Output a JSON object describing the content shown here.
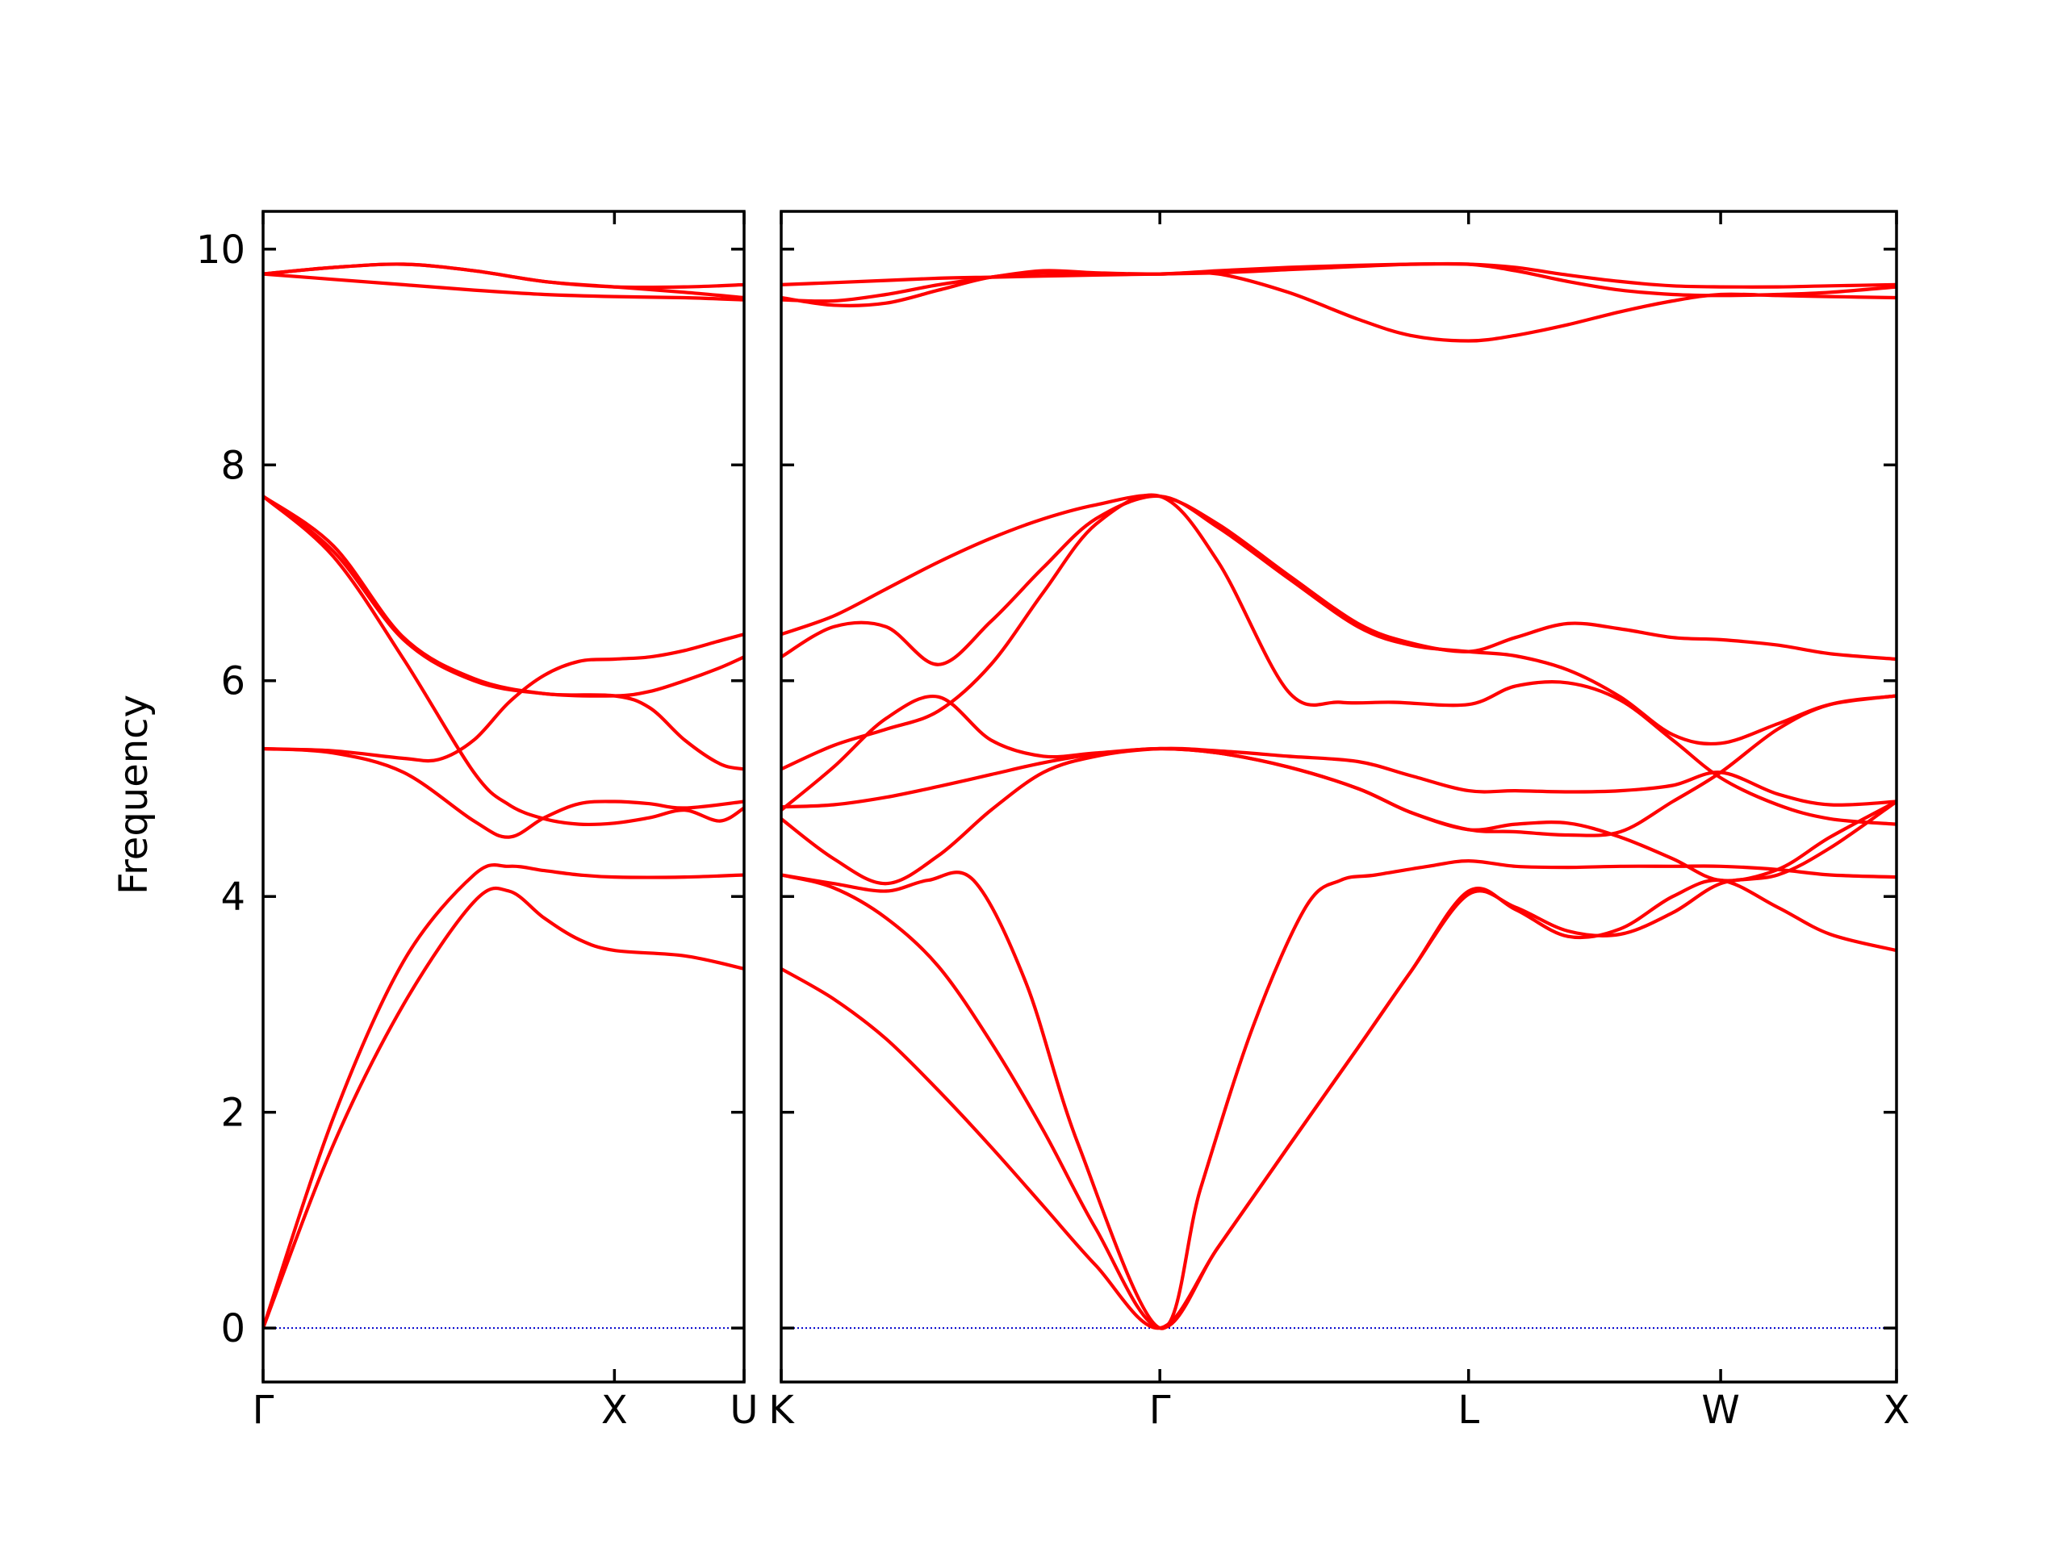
{
  "chart_data": {
    "type": "line",
    "ylabel": "Frequency",
    "ylim": [
      -0.5,
      10.35
    ],
    "yticks": [
      0,
      2,
      4,
      6,
      8,
      10
    ],
    "line_color": "#ff0000",
    "zero_line_color": "#0000cc",
    "grid": false,
    "legend": "none",
    "segments": [
      {
        "name": "Γ-X-U",
        "xlim": [
          0,
          1.369
        ],
        "ticks": [
          {
            "x": 0,
            "label": "Γ"
          },
          {
            "x": 1.0,
            "label": "X"
          },
          {
            "x": 1.369,
            "label": "U"
          }
        ],
        "bands": [
          {
            "x": [
              0,
              0.2,
              0.4,
              0.6,
              0.7,
              0.8,
              0.9,
              1.0,
              1.2,
              1.369
            ],
            "y": [
              0,
              1.7,
              3.0,
              3.95,
              4.05,
              3.8,
              3.6,
              3.5,
              3.45,
              3.33
            ]
          },
          {
            "x": [
              0,
              0.2,
              0.4,
              0.6,
              0.7,
              0.8,
              0.9,
              1.0,
              1.2,
              1.369
            ],
            "y": [
              0,
              1.95,
              3.4,
              4.2,
              4.28,
              4.24,
              4.2,
              4.18,
              4.18,
              4.2
            ]
          },
          {
            "x": [
              0,
              0.2,
              0.4,
              0.6,
              0.7,
              0.8,
              0.9,
              1.0,
              1.1,
              1.2,
              1.369
            ],
            "y": [
              5.37,
              5.33,
              5.15,
              4.7,
              4.55,
              4.73,
              4.86,
              4.88,
              4.86,
              4.82,
              4.88
            ]
          },
          {
            "x": [
              0,
              0.2,
              0.4,
              0.5,
              0.6,
              0.7,
              0.8,
              0.9,
              1.0,
              1.1,
              1.2,
              1.3,
              1.369
            ],
            "y": [
              5.37,
              5.35,
              5.28,
              5.27,
              5.45,
              5.8,
              6.05,
              6.18,
              6.2,
              6.22,
              6.28,
              6.37,
              6.43
            ]
          },
          {
            "x": [
              0,
              0.2,
              0.4,
              0.6,
              0.7,
              0.8,
              0.9,
              1.0,
              1.1,
              1.2,
              1.3,
              1.369
            ],
            "y": [
              7.71,
              7.15,
              6.2,
              5.15,
              4.85,
              4.72,
              4.67,
              4.68,
              4.73,
              4.8,
              4.7,
              4.82
            ]
          },
          {
            "x": [
              0,
              0.2,
              0.4,
              0.6,
              0.8,
              1.0,
              1.1,
              1.2,
              1.3,
              1.369
            ],
            "y": [
              7.71,
              7.25,
              6.4,
              6.02,
              5.88,
              5.86,
              5.75,
              5.45,
              5.23,
              5.18
            ]
          },
          {
            "x": [
              0,
              0.2,
              0.4,
              0.6,
              0.8,
              1.0,
              1.1,
              1.2,
              1.3,
              1.369
            ],
            "y": [
              7.71,
              7.2,
              6.38,
              6.0,
              5.88,
              5.86,
              5.9,
              6.0,
              6.12,
              6.22
            ]
          },
          {
            "x": [
              0,
              0.2,
              0.4,
              0.6,
              0.8,
              1.0,
              1.2,
              1.369
            ],
            "y": [
              9.77,
              9.72,
              9.67,
              9.62,
              9.58,
              9.56,
              9.55,
              9.53
            ]
          },
          {
            "x": [
              0,
              0.2,
              0.4,
              0.6,
              0.8,
              1.0,
              1.2,
              1.369
            ],
            "y": [
              9.77,
              9.83,
              9.86,
              9.8,
              9.7,
              9.65,
              9.65,
              9.67
            ]
          },
          {
            "x": [
              0,
              0.2,
              0.4,
              0.6,
              0.8,
              1.0,
              1.2,
              1.369
            ],
            "y": [
              9.77,
              9.83,
              9.86,
              9.8,
              9.7,
              9.65,
              9.6,
              9.55
            ]
          }
        ]
      },
      {
        "name": "K-Γ-L-W-X",
        "xlim": [
          0,
          3.19
        ],
        "ticks": [
          {
            "x": 0,
            "label": "K"
          },
          {
            "x": 1.083,
            "label": "Γ"
          },
          {
            "x": 1.966,
            "label": "L"
          },
          {
            "x": 2.687,
            "label": "W"
          },
          {
            "x": 3.19,
            "label": "X"
          }
        ],
        "bands": [
          {
            "x": [
              0,
              0.15,
              0.3,
              0.45,
              0.6,
              0.75,
              0.9,
              1.083,
              1.25,
              1.45,
              1.65,
              1.8,
              1.966,
              2.1,
              2.25,
              2.4,
              2.55,
              2.687,
              2.85,
              3.0,
              3.19
            ],
            "y": [
              3.33,
              3.05,
              2.68,
              2.2,
              1.68,
              1.13,
              0.58,
              0,
              0.75,
              1.68,
              2.6,
              3.3,
              4.02,
              3.9,
              3.68,
              3.65,
              3.85,
              4.12,
              4.2,
              4.45,
              4.88
            ]
          },
          {
            "x": [
              0,
              0.15,
              0.3,
              0.45,
              0.6,
              0.75,
              0.9,
              1.083,
              1.25,
              1.45,
              1.65,
              1.8,
              1.966,
              2.1,
              2.25,
              2.4,
              2.55,
              2.687,
              2.85,
              3.0,
              3.19
            ],
            "y": [
              4.2,
              4.08,
              3.8,
              3.35,
              2.65,
              1.83,
              0.92,
              0,
              0.75,
              1.68,
              2.6,
              3.3,
              4.05,
              3.88,
              3.63,
              3.7,
              4.0,
              4.15,
              3.9,
              3.65,
              3.5
            ]
          },
          {
            "x": [
              0,
              0.15,
              0.3,
              0.42,
              0.55,
              0.7,
              0.85,
              1.083,
              1.2,
              1.35,
              1.5,
              1.6,
              1.7,
              1.85,
              1.966,
              2.1,
              2.25,
              2.4,
              2.55,
              2.687,
              2.85,
              3.0,
              3.19
            ],
            "y": [
              4.2,
              4.12,
              4.05,
              4.15,
              4.15,
              3.2,
              1.7,
              0,
              1.3,
              2.8,
              3.9,
              4.15,
              4.2,
              4.28,
              4.33,
              4.28,
              4.27,
              4.28,
              4.28,
              4.28,
              4.25,
              4.2,
              4.18
            ]
          },
          {
            "x": [
              0,
              0.15,
              0.3,
              0.45,
              0.6,
              0.75,
              0.9,
              1.083,
              1.25,
              1.45,
              1.65,
              1.8,
              1.966,
              2.1,
              2.25,
              2.4,
              2.55,
              2.687,
              2.85,
              3.0,
              3.19
            ],
            "y": [
              4.72,
              4.35,
              4.12,
              4.38,
              4.8,
              5.15,
              5.3,
              5.37,
              5.35,
              5.3,
              5.25,
              5.12,
              4.98,
              4.98,
              4.97,
              4.98,
              5.03,
              5.15,
              4.95,
              4.85,
              4.88
            ]
          },
          {
            "x": [
              0,
              0.15,
              0.3,
              0.45,
              0.6,
              0.75,
              0.9,
              1.083,
              1.25,
              1.45,
              1.65,
              1.8,
              1.966,
              2.1,
              2.25,
              2.4,
              2.55,
              2.687,
              2.85,
              3.0,
              3.19
            ],
            "y": [
              4.83,
              4.85,
              4.92,
              5.02,
              5.13,
              5.24,
              5.32,
              5.37,
              5.33,
              5.2,
              5.0,
              4.78,
              4.62,
              4.6,
              4.57,
              4.6,
              4.88,
              5.15,
              5.55,
              5.78,
              5.86
            ]
          },
          {
            "x": [
              0,
              0.15,
              0.3,
              0.45,
              0.6,
              0.75,
              0.9,
              1.083,
              1.25,
              1.45,
              1.65,
              1.8,
              1.966,
              2.1,
              2.25,
              2.4,
              2.55,
              2.687,
              2.85,
              3.0,
              3.19
            ],
            "y": [
              4.8,
              5.2,
              5.65,
              5.85,
              5.45,
              5.3,
              5.33,
              5.37,
              5.33,
              5.2,
              5.0,
              4.78,
              4.62,
              4.67,
              4.68,
              4.55,
              4.35,
              4.15,
              4.25,
              4.55,
              4.88
            ]
          },
          {
            "x": [
              0,
              0.15,
              0.3,
              0.45,
              0.6,
              0.75,
              0.9,
              1.083,
              1.25,
              1.45,
              1.6,
              1.75,
              1.966,
              2.1,
              2.25,
              2.4,
              2.55,
              2.687,
              2.85,
              3.0,
              3.19
            ],
            "y": [
              5.18,
              5.4,
              5.55,
              5.72,
              6.15,
              6.82,
              7.45,
              7.71,
              7.1,
              5.9,
              5.8,
              5.8,
              5.78,
              5.95,
              5.98,
              5.82,
              5.45,
              5.1,
              4.85,
              4.72,
              4.67
            ]
          },
          {
            "x": [
              0,
              0.15,
              0.3,
              0.45,
              0.6,
              0.75,
              0.9,
              1.083,
              1.25,
              1.45,
              1.65,
              1.8,
              1.966,
              2.1,
              2.25,
              2.4,
              2.55,
              2.687,
              2.85,
              3.0,
              3.19
            ],
            "y": [
              6.22,
              6.5,
              6.5,
              6.15,
              6.55,
              7.05,
              7.5,
              7.71,
              7.42,
              6.95,
              6.5,
              6.33,
              6.27,
              6.23,
              6.1,
              5.85,
              5.5,
              5.42,
              5.6,
              5.78,
              5.86
            ]
          },
          {
            "x": [
              0,
              0.15,
              0.3,
              0.45,
              0.6,
              0.75,
              0.9,
              1.083,
              1.25,
              1.45,
              1.65,
              1.8,
              1.966,
              2.1,
              2.25,
              2.4,
              2.55,
              2.687,
              2.85,
              3.0,
              3.19
            ],
            "y": [
              6.43,
              6.6,
              6.85,
              7.1,
              7.32,
              7.5,
              7.63,
              7.71,
              7.45,
              6.98,
              6.53,
              6.35,
              6.27,
              6.4,
              6.53,
              6.48,
              6.4,
              6.38,
              6.33,
              6.25,
              6.2
            ]
          },
          {
            "x": [
              0,
              0.15,
              0.3,
              0.45,
              0.6,
              0.75,
              0.9,
              1.083,
              1.25,
              1.45,
              1.65,
              1.8,
              1.966,
              2.1,
              2.25,
              2.4,
              2.55,
              2.687,
              2.85,
              3.0,
              3.19
            ],
            "y": [
              9.55,
              9.48,
              9.5,
              9.62,
              9.74,
              9.78,
              9.77,
              9.77,
              9.77,
              9.6,
              9.35,
              9.2,
              9.15,
              9.2,
              9.3,
              9.42,
              9.52,
              9.58,
              9.57,
              9.56,
              9.55
            ]
          },
          {
            "x": [
              0,
              0.15,
              0.3,
              0.45,
              0.6,
              0.75,
              0.9,
              1.083,
              1.25,
              1.45,
              1.65,
              1.8,
              1.966,
              2.1,
              2.25,
              2.4,
              2.55,
              2.687,
              2.85,
              3.0,
              3.19
            ],
            "y": [
              9.53,
              9.52,
              9.58,
              9.67,
              9.74,
              9.8,
              9.78,
              9.77,
              9.8,
              9.83,
              9.85,
              9.86,
              9.86,
              9.8,
              9.7,
              9.62,
              9.58,
              9.57,
              9.58,
              9.6,
              9.65
            ]
          },
          {
            "x": [
              0,
              0.15,
              0.3,
              0.45,
              0.6,
              0.75,
              0.9,
              1.083,
              1.25,
              1.45,
              1.65,
              1.8,
              1.966,
              2.1,
              2.25,
              2.4,
              2.55,
              2.687,
              2.85,
              3.0,
              3.19
            ],
            "y": [
              9.67,
              9.69,
              9.71,
              9.73,
              9.74,
              9.75,
              9.76,
              9.77,
              9.78,
              9.81,
              9.84,
              9.86,
              9.86,
              9.83,
              9.76,
              9.7,
              9.66,
              9.65,
              9.65,
              9.66,
              9.67
            ]
          }
        ]
      }
    ]
  }
}
